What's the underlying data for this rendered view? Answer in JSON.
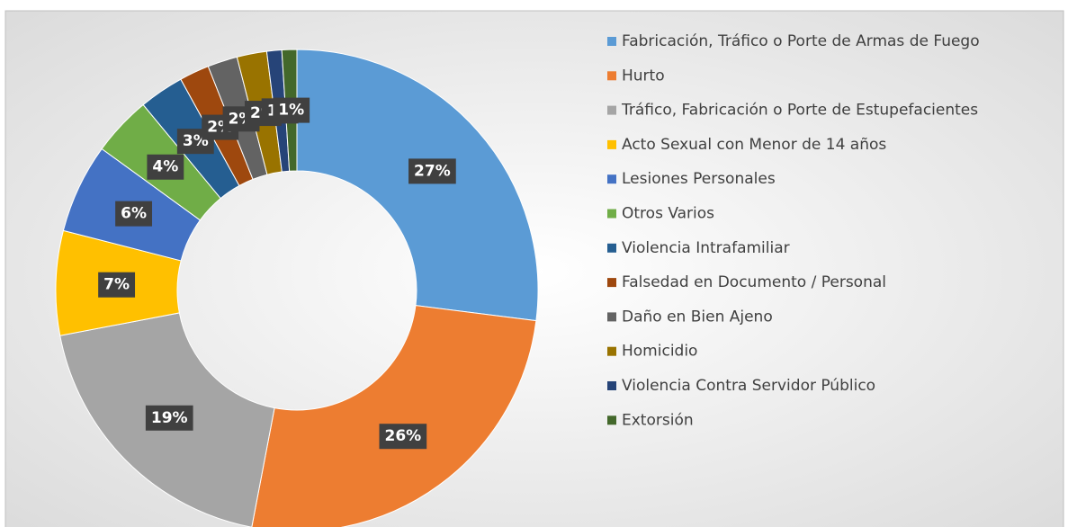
{
  "chart_data": {
    "type": "donut",
    "categories": [
      "Fabricación, Tráfico o Porte de Armas de Fuego",
      "Hurto",
      "Tráfico, Fabricación o Porte de Estupefacientes",
      "Acto Sexual con Menor de 14 años",
      "Lesiones Personales",
      "Otros Varios",
      "Violencia Intrafamiliar",
      "Falsedad en Documento / Personal",
      "Daño en Bien Ajeno",
      "Homicidio",
      "Violencia Contra Servidor Público",
      "Extorsión"
    ],
    "values": [
      27,
      26,
      19,
      7,
      6,
      4,
      3,
      2,
      2,
      2,
      1,
      1
    ],
    "value_labels": [
      "27%",
      "26%",
      "19%",
      "7%",
      "6%",
      "4%",
      "3%",
      "2%",
      "2%",
      "2%",
      "1%",
      "1%"
    ],
    "colors": [
      "#5b9bd5",
      "#ed7d31",
      "#a5a5a5",
      "#ffc000",
      "#4472c4",
      "#70ad47",
      "#255e91",
      "#9e480e",
      "#636363",
      "#997300",
      "#264478",
      "#43682b"
    ],
    "legend": "right"
  }
}
